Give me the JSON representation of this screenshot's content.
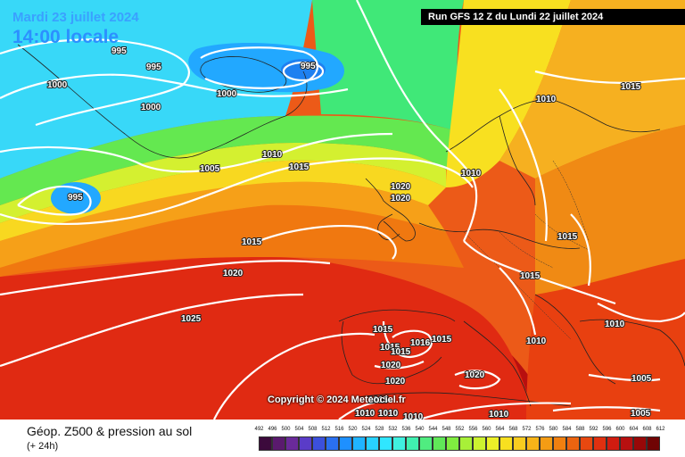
{
  "header": {
    "date": "Mardi 23 juillet 2024",
    "time": "14:00 locale",
    "run": "Run GFS 12 Z du Lundi 22 juillet 2024"
  },
  "footer": {
    "title": "Géop. Z500 & pression au sol",
    "subtitle": "(+ 24h)",
    "copyright": "Copyright © 2024 Meteociel.fr"
  },
  "isobar_labels": [
    "995",
    "995",
    "995",
    "1000",
    "1000",
    "1000",
    "995",
    "1005",
    "1010",
    "1015",
    "1010",
    "1015",
    "1020",
    "1020",
    "1015",
    "1020",
    "1025",
    "1010",
    "1015",
    "1015",
    "1015",
    "1010",
    "1010",
    "1015",
    "1015",
    "1016",
    "1015",
    "1020",
    "1020",
    "1020",
    "1015",
    "1010",
    "1010",
    "1010",
    "1010",
    "1005",
    "1005"
  ],
  "scale": {
    "ticks": [
      "492",
      "496",
      "500",
      "504",
      "508",
      "512",
      "516",
      "520",
      "524",
      "528",
      "532",
      "536",
      "540",
      "544",
      "548",
      "552",
      "556",
      "560",
      "564",
      "568",
      "572",
      "576",
      "580",
      "584",
      "588",
      "592",
      "596",
      "600",
      "604",
      "608",
      "612"
    ],
    "colors": [
      "#3c0a3c",
      "#5a1a6e",
      "#6a2a9a",
      "#5a3cc8",
      "#3c50dc",
      "#2a70f0",
      "#1e90ff",
      "#20b4ff",
      "#28d2ff",
      "#30e6ff",
      "#40f0e0",
      "#40f0b0",
      "#50ec80",
      "#60e858",
      "#80ec40",
      "#a8f038",
      "#ccf230",
      "#ecf028",
      "#f8e020",
      "#f8cc20",
      "#f8b418",
      "#f49c14",
      "#f08010",
      "#ec6410",
      "#e84810",
      "#e03010",
      "#d01c10",
      "#b81010",
      "#980808",
      "#700404",
      "#400000"
    ]
  }
}
